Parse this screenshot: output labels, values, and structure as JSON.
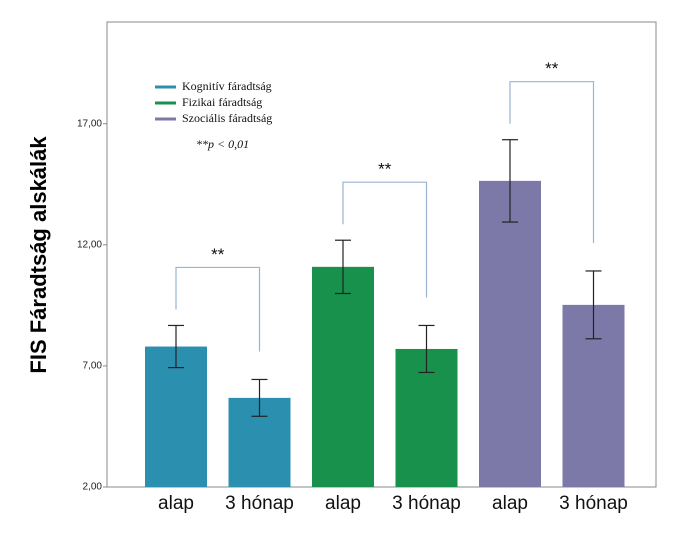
{
  "chart_data": {
    "type": "bar",
    "ylabel": "FIS Fáradtság alskálák",
    "categories": [
      "alap",
      "3 hónap"
    ],
    "series": [
      {
        "name": "Kognitív fáradtság",
        "color": "#2b8fb0",
        "values": [
          7.8,
          5.68
        ],
        "errors": [
          0.87,
          0.76
        ]
      },
      {
        "name": "Fizikai fáradtság",
        "color": "#17914b",
        "values": [
          11.09,
          7.7
        ],
        "errors": [
          1.1,
          0.97
        ]
      },
      {
        "name": "Szociális fáradtság",
        "color": "#7c79a9",
        "values": [
          14.64,
          9.52
        ],
        "errors": [
          1.7,
          1.4
        ]
      }
    ],
    "annotations": [
      "**",
      "**",
      "**"
    ],
    "note": "**p < 0,01",
    "ylim": [
      2,
      21.2
    ],
    "yticks": [
      {
        "value": 2,
        "label": "2,00"
      },
      {
        "value": 7,
        "label": "7,00"
      },
      {
        "value": 12,
        "label": "12,00"
      },
      {
        "value": 17,
        "label": "17,00"
      }
    ],
    "legend": "upper left"
  }
}
